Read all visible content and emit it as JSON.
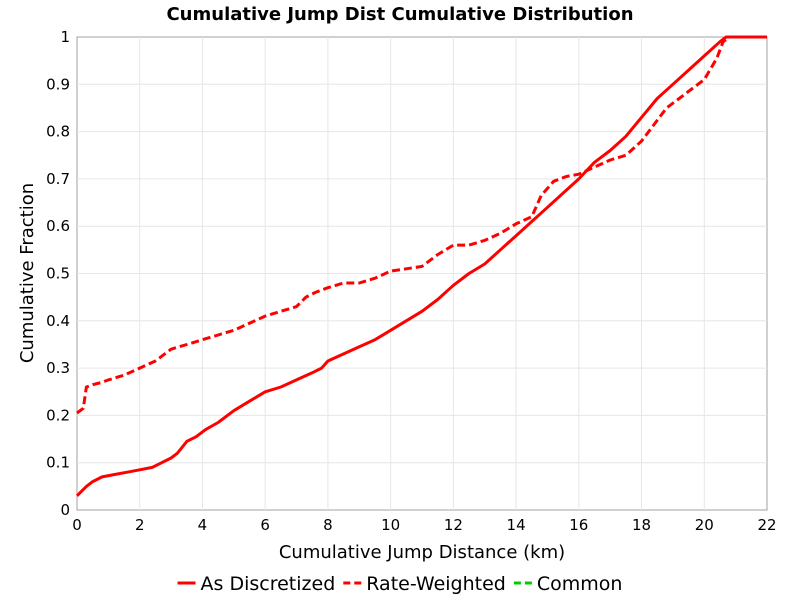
{
  "chart_data": {
    "type": "line",
    "title": "Cumulative Jump Dist Cumulative Distribution",
    "xlabel": "Cumulative Jump Distance (km)",
    "ylabel": "Cumulative Fraction",
    "xlim": [
      0,
      22
    ],
    "ylim": [
      0,
      1
    ],
    "x_ticks": [
      "0",
      "2",
      "4",
      "6",
      "8",
      "10",
      "12",
      "14",
      "16",
      "18",
      "20",
      "22"
    ],
    "y_ticks": [
      "0",
      "0.1",
      "0.2",
      "0.3",
      "0.4",
      "0.5",
      "0.6",
      "0.7",
      "0.8",
      "0.9",
      "1"
    ],
    "grid": true,
    "legend_position": "bottom",
    "series": [
      {
        "name": "As Discretized",
        "color": "#ff0000",
        "dash": "solid",
        "points": [
          [
            0,
            0.03
          ],
          [
            0.15,
            0.04
          ],
          [
            0.3,
            0.05
          ],
          [
            0.5,
            0.06
          ],
          [
            0.8,
            0.07
          ],
          [
            1.2,
            0.075
          ],
          [
            1.6,
            0.08
          ],
          [
            2.0,
            0.085
          ],
          [
            2.4,
            0.09
          ],
          [
            2.7,
            0.1
          ],
          [
            3.0,
            0.11
          ],
          [
            3.2,
            0.12
          ],
          [
            3.5,
            0.145
          ],
          [
            3.8,
            0.155
          ],
          [
            4.1,
            0.17
          ],
          [
            4.5,
            0.185
          ],
          [
            5.0,
            0.21
          ],
          [
            5.5,
            0.23
          ],
          [
            6.0,
            0.25
          ],
          [
            6.5,
            0.26
          ],
          [
            7.0,
            0.275
          ],
          [
            7.5,
            0.29
          ],
          [
            7.8,
            0.3
          ],
          [
            8.0,
            0.315
          ],
          [
            8.5,
            0.33
          ],
          [
            9.0,
            0.345
          ],
          [
            9.5,
            0.36
          ],
          [
            10.0,
            0.38
          ],
          [
            10.5,
            0.4
          ],
          [
            11.0,
            0.42
          ],
          [
            11.5,
            0.445
          ],
          [
            12.0,
            0.475
          ],
          [
            12.5,
            0.5
          ],
          [
            13.0,
            0.52
          ],
          [
            13.5,
            0.55
          ],
          [
            14.0,
            0.58
          ],
          [
            14.5,
            0.61
          ],
          [
            15.0,
            0.64
          ],
          [
            15.5,
            0.67
          ],
          [
            16.0,
            0.7
          ],
          [
            16.5,
            0.735
          ],
          [
            17.0,
            0.76
          ],
          [
            17.5,
            0.79
          ],
          [
            18.0,
            0.83
          ],
          [
            18.5,
            0.87
          ],
          [
            19.0,
            0.9
          ],
          [
            19.5,
            0.93
          ],
          [
            20.0,
            0.96
          ],
          [
            20.5,
            0.99
          ],
          [
            20.7,
            1.0
          ],
          [
            22.0,
            1.0
          ]
        ]
      },
      {
        "name": "Rate-Weighted",
        "color": "#ff0000",
        "dash": "dashed",
        "points": [
          [
            0,
            0.205
          ],
          [
            0.2,
            0.215
          ],
          [
            0.3,
            0.26
          ],
          [
            0.5,
            0.265
          ],
          [
            0.8,
            0.27
          ],
          [
            1.0,
            0.275
          ],
          [
            1.5,
            0.285
          ],
          [
            2.0,
            0.3
          ],
          [
            2.5,
            0.315
          ],
          [
            3.0,
            0.34
          ],
          [
            3.5,
            0.35
          ],
          [
            4.0,
            0.36
          ],
          [
            4.5,
            0.37
          ],
          [
            5.0,
            0.38
          ],
          [
            5.5,
            0.395
          ],
          [
            6.0,
            0.41
          ],
          [
            6.5,
            0.42
          ],
          [
            7.0,
            0.43
          ],
          [
            7.3,
            0.45
          ],
          [
            7.6,
            0.46
          ],
          [
            8.0,
            0.47
          ],
          [
            8.5,
            0.48
          ],
          [
            9.0,
            0.48
          ],
          [
            9.5,
            0.49
          ],
          [
            10.0,
            0.505
          ],
          [
            10.5,
            0.51
          ],
          [
            11.0,
            0.515
          ],
          [
            11.5,
            0.54
          ],
          [
            12.0,
            0.56
          ],
          [
            12.5,
            0.56
          ],
          [
            13.0,
            0.57
          ],
          [
            13.5,
            0.585
          ],
          [
            14.0,
            0.605
          ],
          [
            14.5,
            0.62
          ],
          [
            14.8,
            0.665
          ],
          [
            15.2,
            0.695
          ],
          [
            15.6,
            0.705
          ],
          [
            16.0,
            0.71
          ],
          [
            16.5,
            0.725
          ],
          [
            17.0,
            0.74
          ],
          [
            17.5,
            0.75
          ],
          [
            18.0,
            0.78
          ],
          [
            18.4,
            0.815
          ],
          [
            18.8,
            0.85
          ],
          [
            19.2,
            0.87
          ],
          [
            19.6,
            0.89
          ],
          [
            20.0,
            0.91
          ],
          [
            20.4,
            0.955
          ],
          [
            20.6,
            0.99
          ],
          [
            20.8,
            1.0
          ],
          [
            22.0,
            1.0
          ]
        ]
      },
      {
        "name": "Common",
        "color": "#00cc00",
        "dash": "dashed",
        "points": []
      }
    ]
  }
}
